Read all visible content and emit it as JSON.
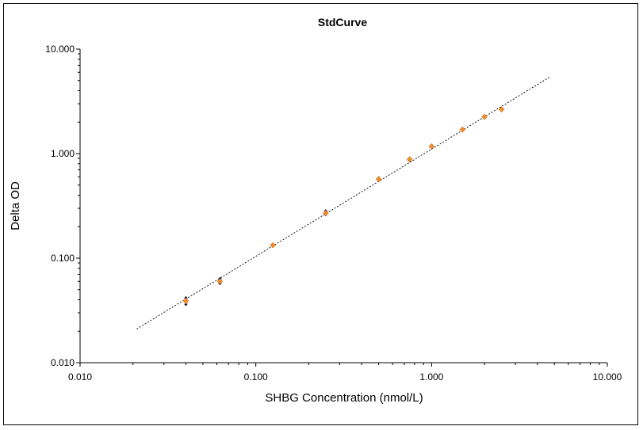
{
  "chart_data": {
    "type": "scatter",
    "title": "StdCurve",
    "xlabel": "SHBG Concentration (nmol/L)",
    "ylabel": "Delta OD",
    "xscale": "log",
    "yscale": "log",
    "xlim": [
      0.01,
      10
    ],
    "ylim": [
      0.01,
      10
    ],
    "xticks": [
      0.01,
      0.1,
      1,
      10
    ],
    "xtick_labels": [
      "0.010",
      "0.100",
      "1.000",
      "10.000"
    ],
    "yticks": [
      0.01,
      0.1,
      1,
      10
    ],
    "ytick_labels": [
      "0.010",
      "0.100",
      "1.000",
      "10.000"
    ],
    "grid": false,
    "legend": "none",
    "series": [
      {
        "type": "scatter-errorbar",
        "color": "#F28C28",
        "error_color": "#1a1a2e",
        "points": [
          {
            "x": 0.04,
            "y": 0.039,
            "ylow": 0.036,
            "yhigh": 0.042
          },
          {
            "x": 0.0625,
            "y": 0.06,
            "ylow": 0.057,
            "yhigh": 0.064
          },
          {
            "x": 0.125,
            "y": 0.133,
            "ylow": 0.13,
            "yhigh": 0.136
          },
          {
            "x": 0.25,
            "y": 0.27,
            "ylow": 0.26,
            "yhigh": 0.285
          },
          {
            "x": 0.5,
            "y": 0.57,
            "ylow": 0.55,
            "yhigh": 0.59
          },
          {
            "x": 0.75,
            "y": 0.88,
            "ylow": 0.85,
            "yhigh": 0.91
          },
          {
            "x": 1.0,
            "y": 1.17,
            "ylow": 1.13,
            "yhigh": 1.21
          },
          {
            "x": 1.5,
            "y": 1.7,
            "ylow": 1.65,
            "yhigh": 1.75
          },
          {
            "x": 2.0,
            "y": 2.25,
            "ylow": 2.18,
            "yhigh": 2.32
          },
          {
            "x": 2.5,
            "y": 2.65,
            "ylow": 2.57,
            "yhigh": 2.73
          }
        ]
      },
      {
        "type": "fit-line",
        "style": "dotted",
        "color": "#000000",
        "x": [
          0.021,
          4.7
        ],
        "y": [
          0.021,
          5.4
        ]
      }
    ]
  }
}
